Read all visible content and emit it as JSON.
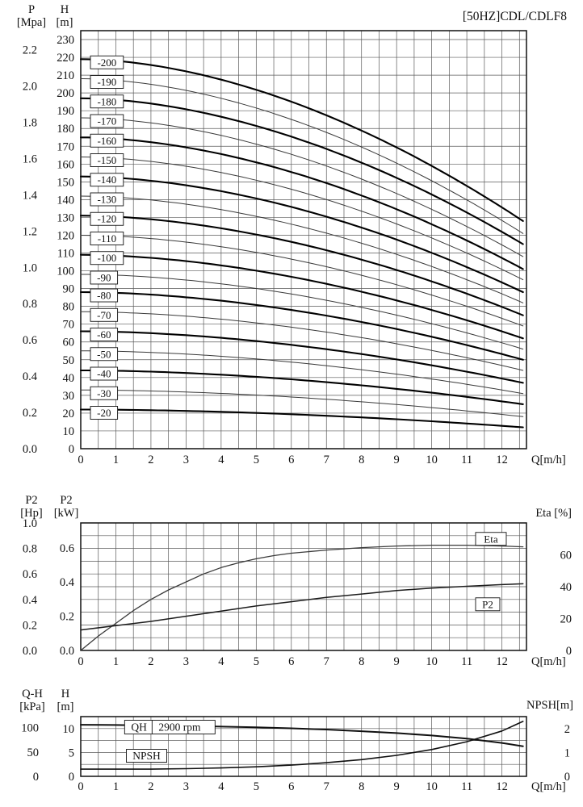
{
  "title": "[50HZ]CDL/CDLF8",
  "axes": {
    "top": {
      "p_name": "P",
      "p_unit": "[Mpa]",
      "h_name": "H",
      "h_unit": "[m]",
      "x_label": "Q[m/h]"
    },
    "middle": {
      "hp_name": "P2",
      "hp_unit": "[Hp]",
      "kw_name": "P2",
      "kw_unit": "[kW]",
      "right_label": "Eta [%]",
      "x_label": "Q[m/h]"
    },
    "bottom": {
      "kpa_name": "Q-H",
      "kpa_unit": "[kPa]",
      "h_name": "H",
      "h_unit": "[m]",
      "right_label": "NPSH[m]",
      "x_label": "Q[m/h]"
    }
  },
  "colors": {
    "ink": "#111111",
    "grid": "#5a5a5a",
    "thin_curve": "#3a3a3a",
    "bold_curve": "#000000"
  },
  "chart_data": [
    {
      "type": "line",
      "title": "[50HZ]CDL/CDLF8",
      "xlabel": "Q[m/h]",
      "xlim": [
        0,
        12.7
      ],
      "x_ticks": [
        0,
        1,
        2,
        3,
        4,
        5,
        6,
        7,
        8,
        9,
        10,
        11,
        12
      ],
      "x_grid_step": 0.5,
      "q_max": 12.6,
      "h_axis": {
        "label": "H [m]",
        "lim": [
          0,
          235
        ],
        "ticks": [
          0,
          10,
          20,
          30,
          40,
          50,
          60,
          70,
          80,
          90,
          100,
          110,
          120,
          130,
          140,
          150,
          160,
          170,
          180,
          190,
          200,
          210,
          220,
          230
        ]
      },
      "p_axis": {
        "label": "P [Mpa]",
        "ticks": [
          0.0,
          0.2,
          0.4,
          0.6,
          0.8,
          1.0,
          1.2,
          1.4,
          1.6,
          1.8,
          2.0,
          2.2
        ],
        "mpa_per_m": 0.00981
      },
      "series": [
        {
          "name": "-200",
          "h0": 219,
          "h_end": 128,
          "bold": true
        },
        {
          "name": "-190",
          "h0": 208,
          "h_end": 121,
          "bold": false
        },
        {
          "name": "-180",
          "h0": 197,
          "h_end": 115,
          "bold": true
        },
        {
          "name": "-170",
          "h0": 186,
          "h_end": 108,
          "bold": false
        },
        {
          "name": "-160",
          "h0": 175,
          "h_end": 101,
          "bold": true
        },
        {
          "name": "-150",
          "h0": 164,
          "h_end": 95,
          "bold": false
        },
        {
          "name": "-140",
          "h0": 153,
          "h_end": 88,
          "bold": true
        },
        {
          "name": "-130",
          "h0": 142,
          "h_end": 82,
          "bold": false
        },
        {
          "name": "-120",
          "h0": 131,
          "h_end": 75,
          "bold": true
        },
        {
          "name": "-110",
          "h0": 120,
          "h_end": 69,
          "bold": false
        },
        {
          "name": "-100",
          "h0": 109,
          "h_end": 62,
          "bold": true
        },
        {
          "name": "-90",
          "h0": 98,
          "h_end": 56,
          "bold": false
        },
        {
          "name": "-80",
          "h0": 88,
          "h_end": 50,
          "bold": true
        },
        {
          "name": "-70",
          "h0": 77,
          "h_end": 44,
          "bold": false
        },
        {
          "name": "-60",
          "h0": 66,
          "h_end": 37,
          "bold": true
        },
        {
          "name": "-50",
          "h0": 55,
          "h_end": 31,
          "bold": false
        },
        {
          "name": "-40",
          "h0": 44,
          "h_end": 25,
          "bold": true
        },
        {
          "name": "-30",
          "h0": 33,
          "h_end": 18,
          "bold": false
        },
        {
          "name": "-20",
          "h0": 22,
          "h_end": 12,
          "bold": true
        }
      ]
    },
    {
      "type": "line",
      "xlabel": "Q[m/h]",
      "xlim": [
        0,
        12.7
      ],
      "x_ticks": [
        0,
        1,
        2,
        3,
        4,
        5,
        6,
        7,
        8,
        9,
        10,
        11,
        12
      ],
      "x_grid_step": 0.5,
      "hp_axis": {
        "label": "P2 [Hp]",
        "lim": [
          0,
          1.0
        ],
        "ticks": [
          0.0,
          0.2,
          0.4,
          0.6,
          0.8,
          1.0
        ]
      },
      "kw_axis": {
        "label": "P2 [kW]",
        "lim": [
          0,
          0.7457
        ],
        "ticks": [
          0.0,
          0.2,
          0.4,
          0.6
        ]
      },
      "eta_axis": {
        "label": "Eta [%]",
        "lim": [
          0,
          80
        ],
        "ticks": [
          0,
          20,
          40,
          60
        ]
      },
      "series": [
        {
          "name": "Eta",
          "unit": "%",
          "axis": "eta",
          "points": [
            [
              0,
              0
            ],
            [
              0.5,
              9
            ],
            [
              1,
              17
            ],
            [
              1.5,
              25
            ],
            [
              2,
              32
            ],
            [
              2.5,
              38
            ],
            [
              3,
              43
            ],
            [
              3.5,
              48
            ],
            [
              4,
              52
            ],
            [
              4.5,
              55
            ],
            [
              5,
              57.5
            ],
            [
              5.5,
              59.5
            ],
            [
              6,
              61
            ],
            [
              7,
              63
            ],
            [
              8,
              64.5
            ],
            [
              9,
              65.5
            ],
            [
              10,
              66
            ],
            [
              11,
              66
            ],
            [
              12,
              65.5
            ],
            [
              12.6,
              65
            ]
          ]
        },
        {
          "name": "P2",
          "unit": "kW",
          "axis": "kw",
          "points": [
            [
              0,
              0.12
            ],
            [
              1,
              0.145
            ],
            [
              2,
              0.17
            ],
            [
              3,
              0.2
            ],
            [
              4,
              0.23
            ],
            [
              5,
              0.26
            ],
            [
              6,
              0.285
            ],
            [
              7,
              0.31
            ],
            [
              8,
              0.33
            ],
            [
              9,
              0.35
            ],
            [
              10,
              0.365
            ],
            [
              11,
              0.375
            ],
            [
              12,
              0.385
            ],
            [
              12.6,
              0.39
            ]
          ]
        }
      ],
      "callouts": [
        {
          "text": "Eta",
          "q": 11.25,
          "axis": "eta",
          "v": 70
        },
        {
          "text": "P2",
          "q": 11.25,
          "axis": "kw",
          "v": 0.27
        }
      ]
    },
    {
      "type": "line",
      "xlabel": "Q[m/h]",
      "xlim": [
        0,
        12.7
      ],
      "x_ticks": [
        0,
        1,
        2,
        3,
        4,
        5,
        6,
        7,
        8,
        9,
        10,
        11,
        12
      ],
      "x_grid_step": 0.5,
      "speed_label": "2900 rpm",
      "h_axis": {
        "label": "H [m]",
        "lim": [
          0,
          12.5
        ],
        "ticks": [
          0,
          5,
          10
        ],
        "grid": [
          2.5,
          5,
          7.5,
          10
        ]
      },
      "kpa_axis": {
        "label": "Q-H [kPa]",
        "ticks": [
          0,
          50,
          100
        ],
        "kpa_per_m": 9.81
      },
      "npsh_axis": {
        "label": "NPSH[m]",
        "lim": [
          0,
          2.5
        ],
        "ticks": [
          0,
          1,
          2
        ]
      },
      "series": [
        {
          "name": "QH",
          "unit": "m",
          "axis": "h",
          "points": [
            [
              0,
              10.8
            ],
            [
              1,
              10.75
            ],
            [
              2,
              10.65
            ],
            [
              3,
              10.55
            ],
            [
              4,
              10.4
            ],
            [
              5,
              10.25
            ],
            [
              6,
              10.05
            ],
            [
              7,
              9.8
            ],
            [
              8,
              9.45
            ],
            [
              9,
              9.05
            ],
            [
              10,
              8.55
            ],
            [
              11,
              7.9
            ],
            [
              12,
              7.0
            ],
            [
              12.6,
              6.3
            ]
          ]
        },
        {
          "name": "NPSH",
          "unit": "m",
          "axis": "npsh",
          "points": [
            [
              0,
              0.3
            ],
            [
              1,
              0.3
            ],
            [
              2,
              0.3
            ],
            [
              3,
              0.32
            ],
            [
              4,
              0.35
            ],
            [
              5,
              0.4
            ],
            [
              6,
              0.47
            ],
            [
              7,
              0.57
            ],
            [
              8,
              0.7
            ],
            [
              9,
              0.88
            ],
            [
              10,
              1.12
            ],
            [
              11,
              1.45
            ],
            [
              12,
              1.9
            ],
            [
              12.6,
              2.3
            ]
          ]
        }
      ]
    }
  ]
}
